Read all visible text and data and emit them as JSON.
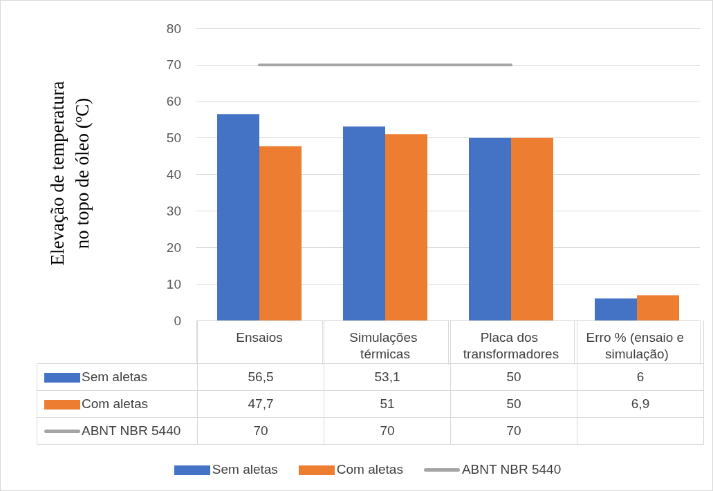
{
  "chart_data": {
    "type": "bar",
    "ylabel": "Elevação de temperatura no topo de óleo (ºC)",
    "categories": [
      "Ensaios",
      "Simulações térmicas",
      "Placa dos transformadores",
      "Erro % (ensaio e simulação)"
    ],
    "series": [
      {
        "name": "Sem aletas",
        "color": "#4472c4",
        "values": [
          56.5,
          53.1,
          50,
          6
        ],
        "value_labels": [
          "56,5",
          "53,1",
          "50",
          "6"
        ]
      },
      {
        "name": "Com aletas",
        "color": "#ed7d31",
        "values": [
          47.7,
          51,
          50,
          6.9
        ],
        "value_labels": [
          "47,7",
          "51",
          "50",
          "6,9"
        ]
      },
      {
        "name": "ABNT NBR 5440",
        "type": "line",
        "color": "#a5a5a5",
        "values": [
          70,
          70,
          70,
          null
        ],
        "value_labels": [
          "70",
          "70",
          "70",
          null
        ]
      }
    ],
    "ylim": [
      0,
      80
    ],
    "yticks": [
      0,
      10,
      20,
      30,
      40,
      50,
      60,
      70,
      80
    ],
    "grid": "y",
    "legend": "bottom",
    "marker": "none"
  }
}
